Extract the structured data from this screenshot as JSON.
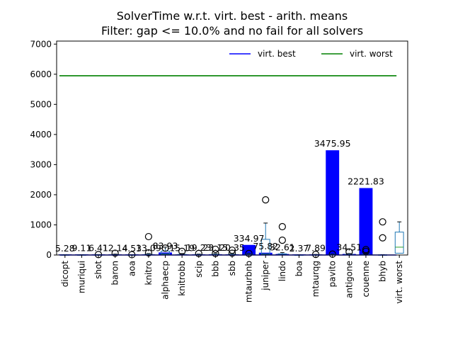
{
  "chart_data": {
    "type": "bar",
    "title": "SolverTime w.r.t. virt. best - arith. means",
    "subtitle": "Filter: gap <= 10.0% and no fail for all solvers",
    "ylim": [
      0,
      7100
    ],
    "yticks": [
      0,
      1000,
      2000,
      3000,
      4000,
      5000,
      6000,
      7000
    ],
    "ytick_labels": [
      "0",
      "1000",
      "2000",
      "3000",
      "4000",
      "5000",
      "6000",
      "7000"
    ],
    "categories": [
      "dicopt",
      "muriqui",
      "shot",
      "baron",
      "aoa",
      "knitro",
      "alphaecp",
      "knitrobb",
      "scip",
      "bbb",
      "sbb",
      "mtaurbnb",
      "juniper",
      "lindo",
      "boa",
      "mtaurqg",
      "pavito",
      "antigone",
      "couenne",
      "bhyb",
      "virt. worst"
    ],
    "values": [
      5.28,
      9.11,
      6.41,
      12.14,
      4.53,
      13.09,
      83.93,
      15.19,
      19.23,
      23.15,
      20.35,
      334.97,
      75.82,
      32.61,
      2.37,
      7.89,
      3475.95,
      34.51,
      2221.83,
      0,
      0
    ],
    "data_labels": [
      "5.28",
      "9.11",
      "6.41",
      "12.14",
      "4.53",
      "13.09",
      "83.93",
      "15.19",
      "19.23",
      "23.15",
      "20.35",
      "334.97",
      "75.82",
      "32.61",
      "2.37",
      "7.89",
      "3475.95",
      "34.51",
      "2221.83",
      "",
      ""
    ],
    "bar_color": "#0000ff",
    "reference_lines": [
      {
        "name": "virt. best",
        "value": 0,
        "color": "#0000ff"
      },
      {
        "name": "virt. worst",
        "value": 5950,
        "color": "#008000"
      }
    ],
    "boxplots": [
      {
        "category": "dicopt",
        "q1": 0,
        "median": 2,
        "q3": 6,
        "whisker_high": 10,
        "outliers": []
      },
      {
        "category": "muriqui",
        "q1": 0,
        "median": 2,
        "q3": 5,
        "whisker_high": 10,
        "outliers": []
      },
      {
        "category": "shot",
        "q1": 0,
        "median": 3,
        "q3": 8,
        "whisker_high": 15,
        "outliers": [
          15
        ]
      },
      {
        "category": "baron",
        "q1": 0,
        "median": 4,
        "q3": 12,
        "whisker_high": 30,
        "outliers": [
          60
        ]
      },
      {
        "category": "aoa",
        "q1": 0,
        "median": 2,
        "q3": 5,
        "whisker_high": 10,
        "outliers": [
          10
        ]
      },
      {
        "category": "knitro",
        "q1": 0,
        "median": 5,
        "q3": 20,
        "whisker_high": 50,
        "outliers": [
          70,
          610
        ]
      },
      {
        "category": "alphaecp",
        "q1": 10,
        "median": 30,
        "q3": 130,
        "whisker_high": 260,
        "outliers": [
          230
        ]
      },
      {
        "category": "knitrobb",
        "q1": 0,
        "median": 5,
        "q3": 20,
        "whisker_high": 50,
        "outliers": [
          120
        ]
      },
      {
        "category": "scip",
        "q1": 0,
        "median": 3,
        "q3": 15,
        "whisker_high": 30,
        "outliers": [
          50
        ]
      },
      {
        "category": "bbb",
        "q1": 0,
        "median": 5,
        "q3": 20,
        "whisker_high": 50,
        "outliers": [
          50,
          190
        ]
      },
      {
        "category": "sbb",
        "q1": 0,
        "median": 5,
        "q3": 20,
        "whisker_high": 50,
        "outliers": [
          60,
          160
        ]
      },
      {
        "category": "mtaurbnb",
        "q1": 0,
        "median": 5,
        "q3": 20,
        "whisker_high": 50,
        "outliers": [
          50
        ]
      },
      {
        "category": "juniper",
        "q1": 0,
        "median": 30,
        "q3": 520,
        "whisker_high": 1060,
        "outliers": [
          1830
        ]
      },
      {
        "category": "lindo",
        "q1": 0,
        "median": 8,
        "q3": 40,
        "whisker_high": 80,
        "outliers": [
          490,
          940
        ]
      },
      {
        "category": "boa",
        "q1": 0,
        "median": 1,
        "q3": 3,
        "whisker_high": 6,
        "outliers": []
      },
      {
        "category": "mtaurqg",
        "q1": 0,
        "median": 2,
        "q3": 8,
        "whisker_high": 20,
        "outliers": [
          20
        ]
      },
      {
        "category": "pavito",
        "q1": 0,
        "median": 5,
        "q3": 15,
        "whisker_high": 30,
        "outliers": [
          30
        ]
      },
      {
        "category": "antigone",
        "q1": 0,
        "median": 5,
        "q3": 20,
        "whisker_high": 50,
        "outliers": [
          100
        ]
      },
      {
        "category": "couenne",
        "q1": 0,
        "median": 5,
        "q3": 20,
        "whisker_high": 50,
        "outliers": [
          120,
          180
        ]
      },
      {
        "category": "bhyb",
        "q1": 0,
        "median": 2,
        "q3": 5,
        "whisker_high": 10,
        "outliers": [
          570,
          1100
        ]
      },
      {
        "category": "virt. worst",
        "q1": 60,
        "median": 260,
        "q3": 760,
        "whisker_high": 1100,
        "outliers": []
      }
    ],
    "legend": {
      "placement": "top-right",
      "entries": [
        "virt. best",
        "virt. worst"
      ]
    },
    "grid": false
  }
}
